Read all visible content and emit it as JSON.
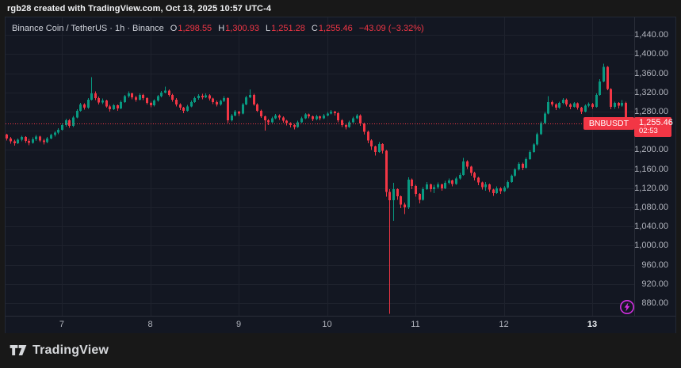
{
  "top_bar": {
    "attribution": "rgb28 created with TradingView.com, Oct 13, 2025 10:57 UTC-4"
  },
  "legend": {
    "symbol_title": "Binance Coin / TetherUS · 1h · Binance",
    "ohlc": [
      {
        "label": "O",
        "value": "1,298.55"
      },
      {
        "label": "H",
        "value": "1,300.93"
      },
      {
        "label": "L",
        "value": "1,251.28"
      },
      {
        "label": "C",
        "value": "1,255.46"
      }
    ],
    "change": "−43.09 (−3.32%)"
  },
  "price_label": {
    "symbol": "BNBUSDT",
    "price": "1,255.46",
    "countdown": "02:53"
  },
  "price_axis": {
    "ticks": [
      {
        "price": 1440,
        "label": "1,440.00"
      },
      {
        "price": 1400,
        "label": "1,400.00"
      },
      {
        "price": 1360,
        "label": "1,360.00"
      },
      {
        "price": 1320,
        "label": "1,320.00"
      },
      {
        "price": 1280,
        "label": "1,280.00"
      },
      {
        "price": 1200,
        "label": "1,200.00"
      },
      {
        "price": 1160,
        "label": "1,160.00"
      },
      {
        "price": 1120,
        "label": "1,120.00"
      },
      {
        "price": 1080,
        "label": "1,080.00"
      },
      {
        "price": 1040,
        "label": "1,040.00"
      },
      {
        "price": 1000,
        "label": "1,000.00"
      },
      {
        "price": 960,
        "label": "960.00"
      },
      {
        "price": 920,
        "label": "920.00"
      },
      {
        "price": 880,
        "label": "880.00"
      }
    ]
  },
  "time_axis": {
    "ticks": [
      {
        "label": "7",
        "candle_index": 16,
        "highlight": false
      },
      {
        "label": "8",
        "candle_index": 40,
        "highlight": false
      },
      {
        "label": "9",
        "candle_index": 64,
        "highlight": false
      },
      {
        "label": "10",
        "candle_index": 88,
        "highlight": false
      },
      {
        "label": "11",
        "candle_index": 112,
        "highlight": false
      },
      {
        "label": "12",
        "candle_index": 136,
        "highlight": false
      },
      {
        "label": "13",
        "candle_index": 160,
        "highlight": true
      }
    ]
  },
  "footer": {
    "brand": "TradingView"
  },
  "colors": {
    "background": "#131722",
    "frame": "#181818",
    "grid": "#1e222d",
    "up": "#089981",
    "down": "#f23645",
    "axis_text": "#b2b5be",
    "text": "#d1d4dc",
    "accent_purple": "#d12ee0"
  },
  "chart_data": {
    "type": "candlestick",
    "symbol": "BNBUSDT",
    "title": "Binance Coin / TetherUS",
    "interval": "1h",
    "exchange": "Binance",
    "last_bar": {
      "open": 1298.55,
      "high": 1300.93,
      "low": 1251.28,
      "close": 1255.46,
      "change": -43.09,
      "change_pct": -3.32
    },
    "price_line": 1255.46,
    "ylim": [
      853,
      1477
    ],
    "grid_prices": [
      880,
      920,
      960,
      1000,
      1040,
      1080,
      1120,
      1160,
      1200,
      1240,
      1280,
      1320,
      1360,
      1400,
      1440
    ],
    "x_day_labels": [
      "7",
      "8",
      "9",
      "10",
      "11",
      "12",
      "13"
    ],
    "candles": [
      [
        1238,
        1240,
        1228,
        1232
      ],
      [
        1232,
        1234,
        1220,
        1224
      ],
      [
        1224,
        1227,
        1213,
        1218
      ],
      [
        1218,
        1221,
        1209,
        1214
      ],
      [
        1214,
        1224,
        1212,
        1221
      ],
      [
        1221,
        1230,
        1218,
        1227
      ],
      [
        1227,
        1229,
        1215,
        1219
      ],
      [
        1219,
        1223,
        1210,
        1215
      ],
      [
        1215,
        1226,
        1213,
        1222
      ],
      [
        1222,
        1231,
        1219,
        1228
      ],
      [
        1228,
        1230,
        1216,
        1220
      ],
      [
        1220,
        1223,
        1211,
        1216
      ],
      [
        1216,
        1227,
        1214,
        1224
      ],
      [
        1224,
        1234,
        1222,
        1231
      ],
      [
        1231,
        1239,
        1228,
        1236
      ],
      [
        1236,
        1245,
        1233,
        1242
      ],
      [
        1242,
        1255,
        1240,
        1252
      ],
      [
        1252,
        1265,
        1249,
        1262
      ],
      [
        1262,
        1264,
        1246,
        1250
      ],
      [
        1250,
        1271,
        1248,
        1268
      ],
      [
        1268,
        1285,
        1266,
        1282
      ],
      [
        1282,
        1298,
        1280,
        1295
      ],
      [
        1295,
        1297,
        1284,
        1288
      ],
      [
        1288,
        1308,
        1286,
        1305
      ],
      [
        1305,
        1352,
        1303,
        1318
      ],
      [
        1318,
        1322,
        1304,
        1308
      ],
      [
        1308,
        1311,
        1295,
        1299
      ],
      [
        1299,
        1307,
        1296,
        1303
      ],
      [
        1303,
        1305,
        1288,
        1291
      ],
      [
        1291,
        1294,
        1280,
        1285
      ],
      [
        1285,
        1296,
        1283,
        1293
      ],
      [
        1293,
        1295,
        1282,
        1287
      ],
      [
        1287,
        1303,
        1285,
        1300
      ],
      [
        1300,
        1315,
        1298,
        1312
      ],
      [
        1312,
        1322,
        1309,
        1318
      ],
      [
        1318,
        1320,
        1306,
        1310
      ],
      [
        1310,
        1313,
        1301,
        1305
      ],
      [
        1305,
        1318,
        1303,
        1315
      ],
      [
        1315,
        1317,
        1304,
        1308
      ],
      [
        1308,
        1310,
        1295,
        1298
      ],
      [
        1298,
        1301,
        1289,
        1293
      ],
      [
        1293,
        1306,
        1291,
        1303
      ],
      [
        1303,
        1315,
        1301,
        1312
      ],
      [
        1312,
        1323,
        1310,
        1320
      ],
      [
        1320,
        1332,
        1318,
        1324
      ],
      [
        1324,
        1326,
        1311,
        1315
      ],
      [
        1315,
        1317,
        1301,
        1305
      ],
      [
        1305,
        1308,
        1291,
        1295
      ],
      [
        1295,
        1297,
        1283,
        1288
      ],
      [
        1288,
        1290,
        1277,
        1282
      ],
      [
        1282,
        1294,
        1280,
        1291
      ],
      [
        1291,
        1303,
        1289,
        1300
      ],
      [
        1300,
        1311,
        1298,
        1308
      ],
      [
        1308,
        1316,
        1305,
        1313
      ],
      [
        1313,
        1317,
        1306,
        1310
      ],
      [
        1310,
        1318,
        1308,
        1314
      ],
      [
        1314,
        1316,
        1303,
        1307
      ],
      [
        1307,
        1309,
        1296,
        1300
      ],
      [
        1300,
        1303,
        1291,
        1295
      ],
      [
        1295,
        1305,
        1292,
        1302
      ],
      [
        1302,
        1312,
        1300,
        1308
      ],
      [
        1308,
        1310,
        1256,
        1262
      ],
      [
        1262,
        1275,
        1259,
        1272
      ],
      [
        1272,
        1283,
        1270,
        1280
      ],
      [
        1280,
        1282,
        1271,
        1276
      ],
      [
        1276,
        1298,
        1274,
        1295
      ],
      [
        1295,
        1313,
        1293,
        1310
      ],
      [
        1310,
        1326,
        1308,
        1315
      ],
      [
        1315,
        1317,
        1292,
        1295
      ],
      [
        1295,
        1297,
        1279,
        1282
      ],
      [
        1282,
        1284,
        1267,
        1270
      ],
      [
        1270,
        1272,
        1240,
        1262
      ],
      [
        1262,
        1264,
        1252,
        1258
      ],
      [
        1258,
        1269,
        1256,
        1266
      ],
      [
        1266,
        1275,
        1264,
        1272
      ],
      [
        1272,
        1274,
        1263,
        1268
      ],
      [
        1268,
        1270,
        1257,
        1261
      ],
      [
        1261,
        1263,
        1251,
        1256
      ],
      [
        1256,
        1258,
        1247,
        1252
      ],
      [
        1252,
        1254,
        1243,
        1248
      ],
      [
        1248,
        1261,
        1246,
        1258
      ],
      [
        1258,
        1269,
        1256,
        1266
      ],
      [
        1266,
        1277,
        1264,
        1274
      ],
      [
        1274,
        1276,
        1266,
        1270
      ],
      [
        1270,
        1272,
        1260,
        1264
      ],
      [
        1264,
        1273,
        1262,
        1270
      ],
      [
        1270,
        1272,
        1262,
        1266
      ],
      [
        1266,
        1275,
        1264,
        1272
      ],
      [
        1272,
        1279,
        1270,
        1276
      ],
      [
        1276,
        1283,
        1274,
        1280
      ],
      [
        1280,
        1282,
        1272,
        1277
      ],
      [
        1277,
        1279,
        1258,
        1262
      ],
      [
        1262,
        1264,
        1248,
        1252
      ],
      [
        1252,
        1254,
        1243,
        1248
      ],
      [
        1248,
        1261,
        1246,
        1258
      ],
      [
        1258,
        1269,
        1256,
        1266
      ],
      [
        1266,
        1275,
        1264,
        1272
      ],
      [
        1272,
        1274,
        1250,
        1255
      ],
      [
        1255,
        1257,
        1232,
        1238
      ],
      [
        1238,
        1240,
        1214,
        1220
      ],
      [
        1220,
        1222,
        1200,
        1207
      ],
      [
        1207,
        1209,
        1188,
        1196
      ],
      [
        1196,
        1216,
        1194,
        1212
      ],
      [
        1212,
        1214,
        1192,
        1198
      ],
      [
        1198,
        1200,
        1102,
        1112
      ],
      [
        1112,
        1118,
        858,
        1095
      ],
      [
        1095,
        1131,
        1052,
        1118
      ],
      [
        1118,
        1120,
        1096,
        1103
      ],
      [
        1103,
        1105,
        1078,
        1086
      ],
      [
        1086,
        1090,
        1066,
        1080
      ],
      [
        1080,
        1143,
        1077,
        1138
      ],
      [
        1138,
        1140,
        1118,
        1125
      ],
      [
        1125,
        1127,
        1102,
        1108
      ],
      [
        1108,
        1110,
        1088,
        1096
      ],
      [
        1096,
        1122,
        1094,
        1118
      ],
      [
        1118,
        1133,
        1116,
        1128
      ],
      [
        1128,
        1130,
        1112,
        1118
      ],
      [
        1118,
        1127,
        1110,
        1122
      ],
      [
        1122,
        1132,
        1119,
        1128
      ],
      [
        1128,
        1130,
        1115,
        1120
      ],
      [
        1120,
        1135,
        1118,
        1131
      ],
      [
        1131,
        1140,
        1128,
        1136
      ],
      [
        1136,
        1138,
        1124,
        1129
      ],
      [
        1129,
        1144,
        1127,
        1140
      ],
      [
        1140,
        1152,
        1138,
        1148
      ],
      [
        1148,
        1183,
        1146,
        1176
      ],
      [
        1176,
        1178,
        1160,
        1165
      ],
      [
        1165,
        1167,
        1146,
        1152
      ],
      [
        1152,
        1154,
        1136,
        1142
      ],
      [
        1142,
        1144,
        1126,
        1132
      ],
      [
        1132,
        1134,
        1117,
        1122
      ],
      [
        1122,
        1133,
        1115,
        1128
      ],
      [
        1128,
        1130,
        1112,
        1117
      ],
      [
        1117,
        1119,
        1104,
        1110
      ],
      [
        1110,
        1124,
        1108,
        1120
      ],
      [
        1120,
        1122,
        1108,
        1114
      ],
      [
        1114,
        1125,
        1112,
        1121
      ],
      [
        1121,
        1136,
        1119,
        1133
      ],
      [
        1133,
        1149,
        1131,
        1146
      ],
      [
        1146,
        1162,
        1144,
        1159
      ],
      [
        1159,
        1174,
        1157,
        1171
      ],
      [
        1171,
        1173,
        1158,
        1163
      ],
      [
        1163,
        1184,
        1161,
        1181
      ],
      [
        1181,
        1199,
        1179,
        1196
      ],
      [
        1196,
        1214,
        1194,
        1211
      ],
      [
        1211,
        1236,
        1209,
        1233
      ],
      [
        1233,
        1259,
        1231,
        1256
      ],
      [
        1256,
        1279,
        1254,
        1276
      ],
      [
        1276,
        1312,
        1274,
        1300
      ],
      [
        1300,
        1303,
        1291,
        1295
      ],
      [
        1295,
        1297,
        1283,
        1288
      ],
      [
        1288,
        1301,
        1286,
        1298
      ],
      [
        1298,
        1308,
        1296,
        1305
      ],
      [
        1305,
        1307,
        1291,
        1295
      ],
      [
        1295,
        1297,
        1285,
        1290
      ],
      [
        1290,
        1300,
        1288,
        1297
      ],
      [
        1297,
        1299,
        1284,
        1288
      ],
      [
        1288,
        1290,
        1275,
        1280
      ],
      [
        1280,
        1295,
        1278,
        1292
      ],
      [
        1292,
        1299,
        1289,
        1296
      ],
      [
        1296,
        1298,
        1286,
        1290
      ],
      [
        1290,
        1318,
        1288,
        1315
      ],
      [
        1315,
        1348,
        1313,
        1343
      ],
      [
        1343,
        1380,
        1341,
        1373
      ],
      [
        1373,
        1375,
        1325,
        1327
      ],
      [
        1327,
        1329,
        1285,
        1290
      ],
      [
        1290,
        1301,
        1286,
        1298
      ],
      [
        1298,
        1300,
        1287,
        1292
      ],
      [
        1292,
        1304,
        1290,
        1298.55
      ],
      [
        1298.55,
        1300.93,
        1251.28,
        1255.46
      ]
    ]
  }
}
